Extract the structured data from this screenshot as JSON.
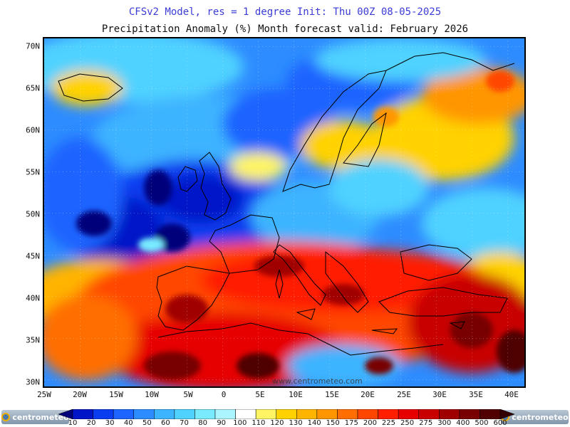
{
  "header": {
    "title_line1": "CFSv2 Model, res = 1 degree    Init: Thu 00Z 08-05-2025",
    "title_line2": "Precipitation Anomaly (%)     Month forecast valid: February 2026"
  },
  "map": {
    "lat_labels": [
      "70N",
      "65N",
      "60N",
      "55N",
      "50N",
      "45N",
      "40N",
      "35N",
      "30N"
    ],
    "lon_labels": [
      "25W",
      "20W",
      "15W",
      "10W",
      "5W",
      "0",
      "5E",
      "10E",
      "15E",
      "20E",
      "25E",
      "30E",
      "35E",
      "40E"
    ],
    "watermark": "www.centrometeo.com"
  },
  "colorbar": {
    "labels": [
      "10",
      "20",
      "30",
      "40",
      "50",
      "60",
      "70",
      "80",
      "90",
      "100",
      "110",
      "120",
      "130",
      "140",
      "150",
      "175",
      "200",
      "225",
      "250",
      "275",
      "300",
      "400",
      "500",
      "600"
    ],
    "colors": [
      "#00007a",
      "#0014c8",
      "#0a3cf0",
      "#1e64ff",
      "#2d8cff",
      "#3cb4ff",
      "#50d2ff",
      "#78ebff",
      "#aaf5ff",
      "#ffffff",
      "#fff564",
      "#ffd200",
      "#ffb400",
      "#ff9600",
      "#ff6e00",
      "#ff4600",
      "#ff1e00",
      "#e60000",
      "#c80000",
      "#a00000",
      "#780000",
      "#500000",
      "#320000"
    ]
  },
  "branding": {
    "left": "centrometeo",
    "right": "centrometeo"
  }
}
